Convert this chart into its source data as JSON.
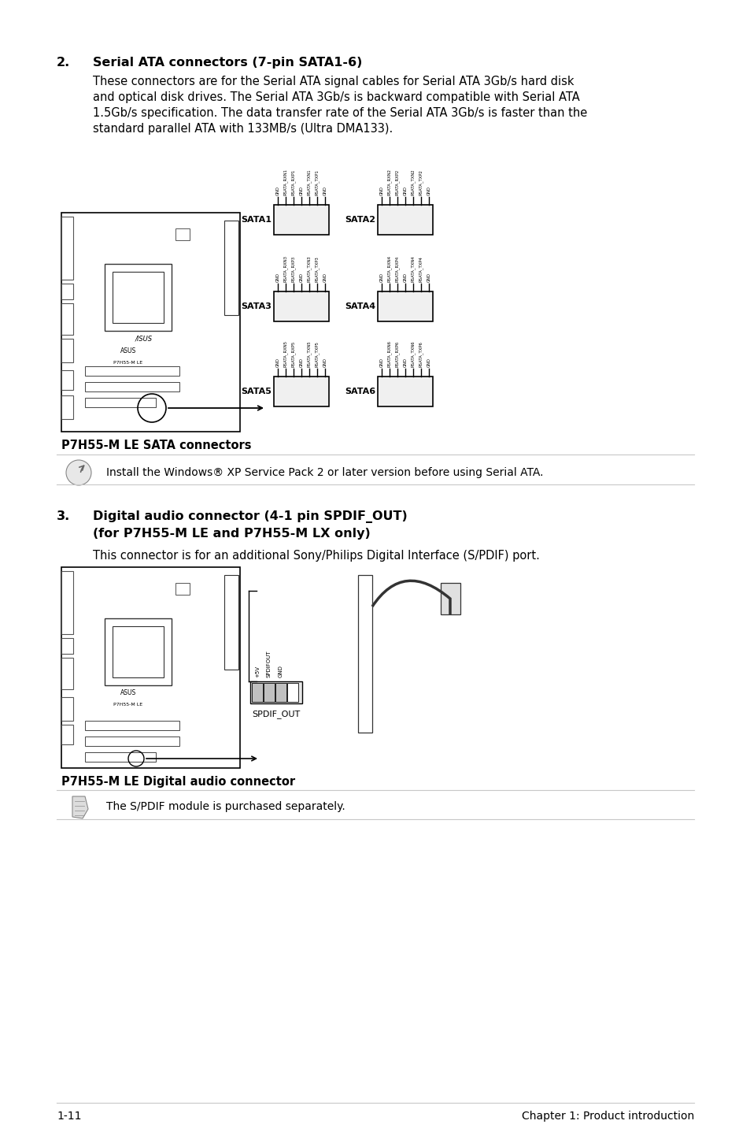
{
  "bg_color": "#ffffff",
  "text_color": "#000000",
  "page_number": "1-11",
  "chapter": "Chapter 1: Product introduction",
  "section2_number": "2.",
  "section2_title": "Serial ATA connectors (7-pin SATA1-6)",
  "section2_body_lines": [
    "These connectors are for the Serial ATA signal cables for Serial ATA 3Gb/s hard disk",
    "and optical disk drives. The Serial ATA 3Gb/s is backward compatible with Serial ATA",
    "1.5Gb/s specification. The data transfer rate of the Serial ATA 3Gb/s is faster than the",
    "standard parallel ATA with 133MB/s (Ultra DMA133)."
  ],
  "note2_text": "Install the Windows® XP Service Pack 2 or later version before using Serial ATA.",
  "section3_number": "3.",
  "section3_title": "Digital audio connector (4-1 pin SPDIF_OUT)",
  "section3_title2": "(for P7H55-M LE and P7H55-M LX only)",
  "section3_body": "This connector is for an additional Sony/Philips Digital Interface (S/PDIF) port.",
  "section2_caption": "P7H55-M LE SATA connectors",
  "section3_caption": "P7H55-M LE Digital audio connector",
  "note3_text": "The S/PDIF module is purchased separately.",
  "line_color": "#c8c8c8",
  "sata_labels_1": [
    "GND",
    "RSATA_RXN1",
    "RSATA_RXP1",
    "GND",
    "RSATA_TXN1",
    "RSATA_TXP1",
    "GND"
  ],
  "sata_labels_2": [
    "GND",
    "RSATA_RXN2",
    "RSATA_RXP2",
    "GND",
    "RSATA_TXN2",
    "RSATA_TXP2",
    "GND"
  ],
  "sata_labels_3": [
    "GND",
    "RSATA_RXN3",
    "RSATA_RXP3",
    "GND",
    "RSATA_TXN3",
    "RSATA_TXP3",
    "GND"
  ],
  "sata_labels_4": [
    "GND",
    "RSATA_RXN4",
    "RSATA_RXP4",
    "GND",
    "RSATA_TXN4",
    "RSATA_TXP4",
    "GND"
  ],
  "sata_labels_5": [
    "GND",
    "RSATA_RXN5",
    "RSATA_RXP5",
    "GND",
    "RSATA_TXN5",
    "RSATA_TXP5",
    "GND"
  ],
  "sata_labels_6": [
    "GND",
    "RSATA_RXN6",
    "RSATA_RXP6",
    "GND",
    "RSATA_TXN6",
    "RSATA_TXP6",
    "GND"
  ],
  "spdif_labels": [
    "+5V",
    "SPDIFOUT",
    "GND",
    ""
  ]
}
